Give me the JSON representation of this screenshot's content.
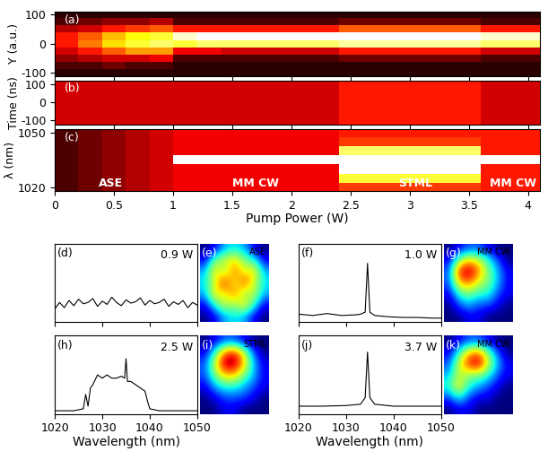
{
  "chart_data": [
    {
      "type": "heatmap",
      "panel_label": "(a)",
      "ylabel": "Y (a.u.)",
      "x": [
        0.1,
        0.3,
        0.5,
        0.7,
        0.9,
        1.1,
        1.3,
        1.5,
        1.7,
        1.9,
        2.1,
        2.3,
        2.5,
        2.7,
        2.9,
        3.1,
        3.3,
        3.5,
        3.7,
        3.9,
        4.1
      ],
      "y": [
        -100,
        -75,
        -50,
        -25,
        0,
        25,
        50,
        75,
        100
      ],
      "cells": [
        [
          0.05,
          0.05,
          0.05,
          0.05,
          0.05,
          0.05,
          0.05,
          0.05,
          0.05,
          0.05,
          0.05,
          0.05,
          0.05,
          0.05,
          0.05,
          0.05,
          0.05,
          0.05,
          0.05,
          0.05,
          0.05
        ],
        [
          0.1,
          0.1,
          0.15,
          0.1,
          0.1,
          0.05,
          0.05,
          0.05,
          0.05,
          0.05,
          0.05,
          0.05,
          0.05,
          0.05,
          0.05,
          0.05,
          0.05,
          0.05,
          0.05,
          0.05,
          0.05
        ],
        [
          0.2,
          0.25,
          0.3,
          0.3,
          0.35,
          0.1,
          0.1,
          0.1,
          0.1,
          0.1,
          0.1,
          0.1,
          0.15,
          0.15,
          0.15,
          0.15,
          0.15,
          0.15,
          0.1,
          0.1,
          0.1
        ],
        [
          0.3,
          0.4,
          0.5,
          0.6,
          0.6,
          0.35,
          0.35,
          0.3,
          0.3,
          0.3,
          0.3,
          0.3,
          0.4,
          0.4,
          0.4,
          0.4,
          0.4,
          0.4,
          0.3,
          0.3,
          0.3
        ],
        [
          0.4,
          0.55,
          0.7,
          0.8,
          0.85,
          0.8,
          0.85,
          0.85,
          0.85,
          0.85,
          0.85,
          0.85,
          0.9,
          0.9,
          0.9,
          0.9,
          0.9,
          0.9,
          0.85,
          0.85,
          0.85
        ],
        [
          0.4,
          0.5,
          0.65,
          0.75,
          0.8,
          0.95,
          1,
          1,
          1,
          1,
          1,
          1,
          1,
          1,
          1,
          1,
          1,
          1,
          0.95,
          0.95,
          0.95
        ],
        [
          0.25,
          0.3,
          0.4,
          0.45,
          0.5,
          0.4,
          0.4,
          0.4,
          0.4,
          0.4,
          0.4,
          0.4,
          0.5,
          0.5,
          0.5,
          0.5,
          0.5,
          0.5,
          0.4,
          0.4,
          0.4
        ],
        [
          0.1,
          0.15,
          0.2,
          0.2,
          0.25,
          0.1,
          0.1,
          0.1,
          0.1,
          0.1,
          0.1,
          0.1,
          0.15,
          0.15,
          0.15,
          0.15,
          0.15,
          0.15,
          0.1,
          0.1,
          0.1
        ],
        [
          0.05,
          0.05,
          0.05,
          0.05,
          0.05,
          0.05,
          0.05,
          0.05,
          0.05,
          0.05,
          0.05,
          0.05,
          0.05,
          0.05,
          0.05,
          0.05,
          0.05,
          0.05,
          0.05,
          0.05,
          0.05
        ]
      ],
      "color_range": [
        0,
        1
      ],
      "xlim": [
        0,
        4.1
      ],
      "xticks": [
        0,
        0.5,
        1,
        1.5,
        2,
        2.5,
        3,
        3.5,
        4
      ],
      "ylim": [
        -110,
        110
      ],
      "yticks": [
        -100,
        0,
        100
      ],
      "tick_labels": "y"
    },
    {
      "type": "heatmap",
      "panel_label": "(b)",
      "ylabel": "Time (ns)",
      "x": [
        0.1,
        0.3,
        0.5,
        0.7,
        0.9,
        1.1,
        1.3,
        1.5,
        1.7,
        1.9,
        2.1,
        2.3,
        2.5,
        2.7,
        2.9,
        3.1,
        3.3,
        3.5,
        3.7,
        3.9,
        4.1
      ],
      "y": [
        -100,
        -50,
        0,
        50,
        100
      ],
      "cells": [
        [
          0.3,
          0.3,
          0.3,
          0.3,
          0.3,
          0.3,
          0.3,
          0.3,
          0.3,
          0.3,
          0.3,
          0.3,
          0.4,
          0.4,
          0.4,
          0.4,
          0.4,
          0.4,
          0.3,
          0.3,
          0.3
        ],
        [
          0.3,
          0.3,
          0.3,
          0.3,
          0.3,
          0.3,
          0.3,
          0.3,
          0.3,
          0.3,
          0.3,
          0.3,
          0.4,
          0.4,
          0.4,
          0.4,
          0.4,
          0.4,
          0.3,
          0.3,
          0.3
        ],
        [
          0.3,
          0.3,
          0.3,
          0.3,
          0.3,
          0.3,
          0.3,
          0.3,
          0.3,
          0.3,
          0.3,
          0.3,
          0.4,
          0.4,
          0.4,
          0.4,
          0.4,
          0.4,
          0.3,
          0.3,
          0.3
        ],
        [
          0.3,
          0.3,
          0.3,
          0.3,
          0.3,
          0.3,
          0.3,
          0.3,
          0.3,
          0.3,
          0.3,
          0.3,
          0.4,
          0.4,
          0.4,
          0.4,
          0.4,
          0.4,
          0.3,
          0.3,
          0.3
        ],
        [
          0.3,
          0.3,
          0.3,
          0.3,
          0.3,
          0.3,
          0.3,
          0.3,
          0.3,
          0.3,
          0.3,
          0.3,
          0.4,
          0.4,
          0.4,
          0.4,
          0.4,
          0.4,
          0.3,
          0.3,
          0.3
        ]
      ],
      "color_range": [
        0,
        1
      ],
      "xlim": [
        0,
        4.1
      ],
      "xticks": [
        0,
        0.5,
        1,
        1.5,
        2,
        2.5,
        3,
        3.5,
        4
      ],
      "ylim": [
        -120,
        120
      ],
      "yticks": [
        -100,
        0,
        100
      ],
      "tick_labels": "y"
    },
    {
      "type": "heatmap",
      "panel_label": "(c)",
      "ylabel": "λ (nm)",
      "xlabel": "Pump Power (W)",
      "x": [
        0.1,
        0.3,
        0.5,
        0.7,
        0.9,
        1.1,
        1.3,
        1.5,
        1.7,
        1.9,
        2.1,
        2.3,
        2.5,
        2.7,
        2.9,
        3.1,
        3.3,
        3.5,
        3.7,
        3.9,
        4.1
      ],
      "y": [
        1020,
        1025,
        1030,
        1035,
        1040,
        1045,
        1050
      ],
      "cells": [
        [
          0.1,
          0.15,
          0.2,
          0.25,
          0.3,
          0.35,
          0.35,
          0.35,
          0.35,
          0.35,
          0.35,
          0.35,
          0.45,
          0.45,
          0.45,
          0.45,
          0.45,
          0.45,
          0.4,
          0.4,
          0.4
        ],
        [
          0.1,
          0.15,
          0.2,
          0.25,
          0.3,
          0.35,
          0.35,
          0.35,
          0.35,
          0.35,
          0.35,
          0.35,
          0.8,
          0.8,
          0.8,
          0.8,
          0.8,
          0.8,
          0.4,
          0.4,
          0.4
        ],
        [
          0.1,
          0.15,
          0.2,
          0.25,
          0.3,
          0.35,
          0.35,
          0.35,
          0.35,
          0.35,
          0.35,
          0.35,
          1,
          1,
          1,
          1,
          1,
          1,
          0.4,
          0.4,
          0.4
        ],
        [
          0.1,
          0.15,
          0.2,
          0.25,
          0.3,
          1,
          1,
          1,
          1,
          1,
          1,
          1,
          1,
          1,
          1,
          1,
          1,
          1,
          1,
          1,
          1
        ],
        [
          0.1,
          0.15,
          0.2,
          0.25,
          0.3,
          0.35,
          0.35,
          0.35,
          0.35,
          0.35,
          0.35,
          0.35,
          0.85,
          0.85,
          0.85,
          0.85,
          0.85,
          0.85,
          0.4,
          0.4,
          0.4
        ],
        [
          0.1,
          0.15,
          0.2,
          0.25,
          0.3,
          0.35,
          0.35,
          0.35,
          0.35,
          0.35,
          0.35,
          0.35,
          0.45,
          0.45,
          0.45,
          0.45,
          0.45,
          0.45,
          0.4,
          0.4,
          0.4
        ],
        [
          0.1,
          0.15,
          0.2,
          0.25,
          0.3,
          0.35,
          0.35,
          0.35,
          0.35,
          0.35,
          0.35,
          0.35,
          0.4,
          0.4,
          0.4,
          0.4,
          0.4,
          0.4,
          0.4,
          0.4,
          0.4
        ]
      ],
      "color_range": [
        0,
        1
      ],
      "regions": [
        {
          "label": "ASE",
          "from": 0,
          "to": 0.95
        },
        {
          "label": "MM CW",
          "from": 0.95,
          "to": 2.45
        },
        {
          "label": "STML",
          "from": 2.45,
          "to": 3.65
        },
        {
          "label": "MM CW",
          "from": 3.65,
          "to": 4.1
        }
      ],
      "xlim": [
        0,
        4.1
      ],
      "xticks": [
        0,
        0.5,
        1,
        1.5,
        2,
        2.5,
        3,
        3.5,
        4
      ],
      "ylim": [
        1018,
        1052
      ],
      "yticks": [
        1020,
        1050
      ]
    },
    {
      "type": "line",
      "panel_label": "(d)",
      "annotation": "0.9 W",
      "color": "#000000",
      "x": [
        1020,
        1021,
        1022,
        1023,
        1024,
        1025,
        1026,
        1027,
        1028,
        1029,
        1030,
        1031,
        1032,
        1033,
        1034,
        1035,
        1036,
        1037,
        1038,
        1039,
        1040,
        1041,
        1042,
        1043,
        1044,
        1045,
        1046,
        1047,
        1048,
        1049,
        1050
      ],
      "values": [
        0.2,
        0.3,
        0.22,
        0.33,
        0.25,
        0.35,
        0.28,
        0.3,
        0.36,
        0.24,
        0.32,
        0.27,
        0.38,
        0.3,
        0.25,
        0.34,
        0.29,
        0.31,
        0.37,
        0.26,
        0.33,
        0.28,
        0.3,
        0.35,
        0.24,
        0.31,
        0.27,
        0.33,
        0.22,
        0.3,
        0.26
      ],
      "xlim": [
        1020,
        1050
      ],
      "xticks": [
        1020,
        1030,
        1040,
        1050
      ],
      "ylim": [
        0,
        1.2
      ],
      "yticks": [],
      "tick_labels": false
    },
    {
      "type": "image",
      "panel_label": "(e)",
      "label": "ASE",
      "cells": [
        [
          0,
          0.1,
          0.3,
          0.35,
          0.3,
          0.1,
          0
        ],
        [
          0.1,
          0.5,
          0.6,
          0.7,
          0.5,
          0.4,
          0.1
        ],
        [
          0.3,
          0.7,
          0.5,
          0.8,
          0.6,
          0.7,
          0.3
        ],
        [
          0.35,
          0.6,
          0.9,
          0.6,
          0.85,
          0.6,
          0.35
        ],
        [
          0.3,
          0.7,
          0.6,
          0.8,
          0.5,
          0.6,
          0.3
        ],
        [
          0.1,
          0.4,
          0.6,
          0.5,
          0.7,
          0.4,
          0.1
        ],
        [
          0,
          0.1,
          0.3,
          0.35,
          0.3,
          0.1,
          0
        ]
      ],
      "color_range": [
        0,
        1
      ],
      "tick_labels": false
    },
    {
      "type": "line",
      "panel_label": "(f)",
      "annotation": "1.0 W",
      "color": "#000000",
      "x": [
        1020,
        1023,
        1026,
        1029,
        1032,
        1033,
        1034,
        1034.5,
        1035,
        1036,
        1039,
        1042,
        1045,
        1048,
        1050
      ],
      "values": [
        0.12,
        0.1,
        0.13,
        0.1,
        0.11,
        0.12,
        0.15,
        0.9,
        0.15,
        0.1,
        0.08,
        0.07,
        0.07,
        0.06,
        0.06
      ],
      "xlim": [
        1020,
        1050
      ],
      "xticks": [
        1020,
        1030,
        1040,
        1050
      ],
      "ylim": [
        0,
        1.2
      ],
      "yticks": [],
      "tick_labels": false
    },
    {
      "type": "image",
      "panel_label": "(g)",
      "label": "MM CW",
      "cells": [
        [
          0,
          0.1,
          0.2,
          0.2,
          0.1,
          0,
          0
        ],
        [
          0.1,
          0.5,
          0.7,
          0.6,
          0.4,
          0.2,
          0
        ],
        [
          0.2,
          0.9,
          1,
          0.8,
          0.5,
          0.3,
          0.1
        ],
        [
          0.2,
          0.7,
          0.8,
          0.6,
          0.5,
          0.3,
          0.1
        ],
        [
          0.1,
          0.4,
          0.5,
          0.4,
          0.4,
          0.2,
          0.1
        ],
        [
          0,
          0.2,
          0.3,
          0.2,
          0.2,
          0.1,
          0
        ],
        [
          0,
          0,
          0.1,
          0.1,
          0,
          0,
          0
        ]
      ],
      "color_range": [
        0,
        1
      ],
      "tick_labels": false
    },
    {
      "type": "line",
      "panel_label": "(h)",
      "annotation": "2.5 W",
      "color": "#000000",
      "xlabel": "Wavelength (nm)",
      "x": [
        1020,
        1024,
        1026,
        1026.5,
        1027,
        1027.5,
        1028,
        1029,
        1030,
        1031,
        1032,
        1033,
        1034,
        1034.7,
        1035,
        1035.3,
        1036,
        1037,
        1038,
        1039,
        1039.5,
        1040,
        1042,
        1046,
        1050
      ],
      "values": [
        0.05,
        0.05,
        0.08,
        0.3,
        0.12,
        0.4,
        0.45,
        0.6,
        0.55,
        0.6,
        0.55,
        0.55,
        0.58,
        0.55,
        0.85,
        0.5,
        0.5,
        0.45,
        0.4,
        0.35,
        0.2,
        0.08,
        0.05,
        0.05,
        0.05
      ],
      "xlim": [
        1020,
        1050
      ],
      "xticks": [
        1020,
        1030,
        1040,
        1050
      ],
      "ylim": [
        0,
        1.2
      ],
      "yticks": [],
      "tick_labels": "x"
    },
    {
      "type": "image",
      "panel_label": "(i)",
      "label": "STML",
      "cells": [
        [
          0,
          0.1,
          0.2,
          0.2,
          0.1,
          0,
          0
        ],
        [
          0.1,
          0.4,
          0.8,
          0.9,
          0.6,
          0.2,
          0
        ],
        [
          0.2,
          0.6,
          1,
          1,
          0.7,
          0.3,
          0.1
        ],
        [
          0.2,
          0.5,
          0.7,
          0.7,
          0.5,
          0.3,
          0.1
        ],
        [
          0.1,
          0.3,
          0.4,
          0.4,
          0.3,
          0.2,
          0.1
        ],
        [
          0,
          0.1,
          0.2,
          0.2,
          0.2,
          0.1,
          0
        ],
        [
          0,
          0,
          0.1,
          0.1,
          0,
          0,
          0
        ]
      ],
      "color_range": [
        0,
        1
      ],
      "tick_labels": false
    },
    {
      "type": "line",
      "panel_label": "(j)",
      "annotation": "3.7 W",
      "color": "#000000",
      "xlabel": "Wavelength (nm)",
      "x": [
        1020,
        1025,
        1030,
        1033,
        1034,
        1034.5,
        1035,
        1036,
        1040,
        1045,
        1050
      ],
      "values": [
        0.12,
        0.12,
        0.13,
        0.15,
        0.25,
        0.95,
        0.25,
        0.15,
        0.12,
        0.12,
        0.12
      ],
      "xlim": [
        1020,
        1050
      ],
      "xticks": [
        1020,
        1030,
        1040,
        1050
      ],
      "ylim": [
        0,
        1.2
      ],
      "yticks": [],
      "tick_labels": "x"
    },
    {
      "type": "image",
      "panel_label": "(k)",
      "label": "MM CW",
      "cells": [
        [
          0,
          0.1,
          0.2,
          0.2,
          0.1,
          0,
          0
        ],
        [
          0.1,
          0.4,
          0.7,
          0.8,
          0.5,
          0.2,
          0
        ],
        [
          0.2,
          0.6,
          0.9,
          1,
          0.6,
          0.3,
          0.1
        ],
        [
          0.3,
          0.6,
          0.5,
          0.5,
          0.4,
          0.2,
          0.1
        ],
        [
          0.4,
          0.7,
          0.4,
          0.3,
          0.2,
          0.1,
          0
        ],
        [
          0.2,
          0.4,
          0.2,
          0.1,
          0.1,
          0,
          0
        ],
        [
          0,
          0.1,
          0.1,
          0,
          0,
          0,
          0
        ]
      ],
      "color_range": [
        0,
        1
      ],
      "tick_labels": false
    }
  ]
}
